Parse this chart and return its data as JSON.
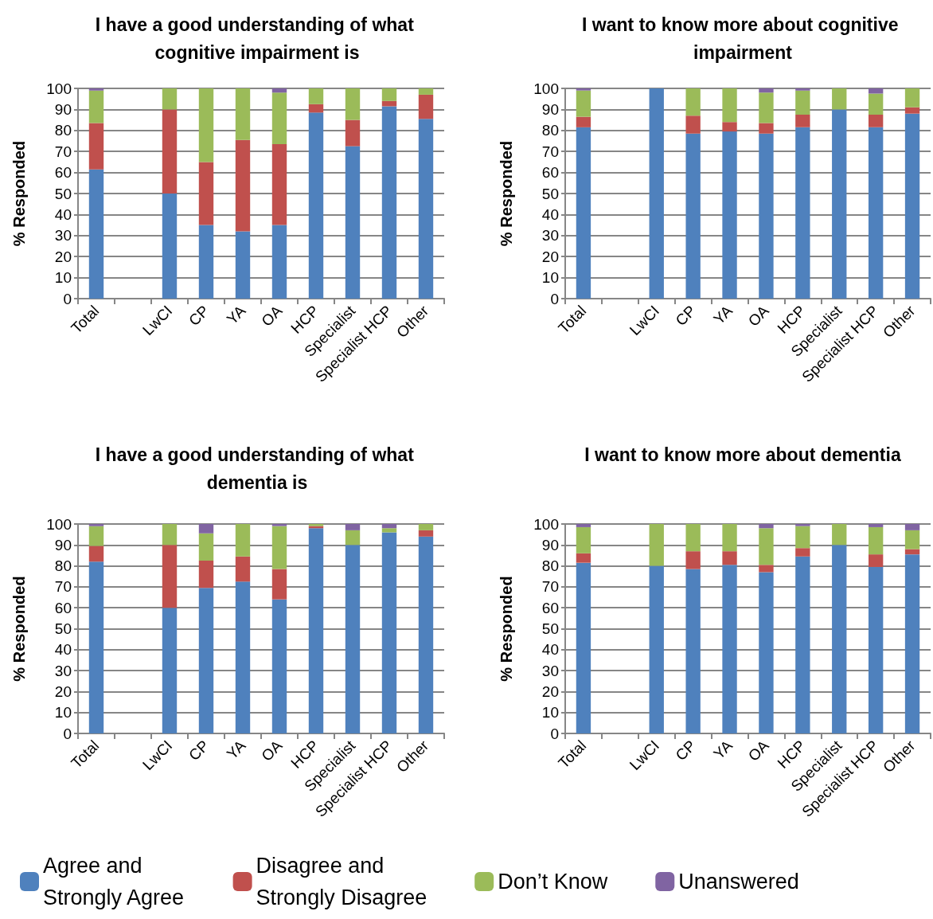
{
  "chart_data": [
    {
      "type": "bar",
      "stacked": true,
      "title": "I have a good understanding of what cognitive impairment is",
      "ylabel": "% Responded",
      "categories": [
        "Total",
        null,
        "LwCI",
        "CP",
        "YA",
        "OA",
        "HCP",
        "Specialist",
        "Specialist HCP",
        "Other"
      ],
      "ylim": [
        0,
        100
      ],
      "yticks": [
        0,
        10,
        20,
        30,
        40,
        50,
        60,
        70,
        80,
        90,
        100
      ],
      "grid": "y",
      "series": [
        {
          "color": "#4f81bd",
          "values": [
            61.5,
            null,
            50,
            35,
            32,
            35,
            88.5,
            72.5,
            91.5,
            85.5
          ]
        },
        {
          "color": "#c0504d",
          "values": [
            22,
            null,
            40,
            30,
            43.5,
            38.5,
            4,
            12.5,
            2.5,
            11.5
          ]
        },
        {
          "color": "#9bbb59",
          "values": [
            15.5,
            null,
            10,
            35,
            24.5,
            24.5,
            7.5,
            15,
            6,
            3
          ]
        },
        {
          "color": "#8064a2",
          "values": [
            1,
            null,
            0,
            0,
            0,
            2,
            0,
            0,
            0,
            0
          ]
        }
      ]
    },
    {
      "type": "bar",
      "stacked": true,
      "title": "I want to know more about cognitive impairment",
      "ylabel": "% Responded",
      "categories": [
        "Total",
        null,
        "LwCI",
        "CP",
        "YA",
        "OA",
        "HCP",
        "Specialist",
        "Specialist HCP",
        "Other"
      ],
      "ylim": [
        0,
        100
      ],
      "yticks": [
        0,
        10,
        20,
        30,
        40,
        50,
        60,
        70,
        80,
        90,
        100
      ],
      "grid": "y",
      "series": [
        {
          "color": "#4f81bd",
          "values": [
            81.5,
            null,
            100,
            78.5,
            79.5,
            78.5,
            81.5,
            90,
            81.5,
            88
          ]
        },
        {
          "color": "#c0504d",
          "values": [
            5,
            null,
            0,
            8.5,
            4.5,
            5,
            6,
            0,
            6,
            3
          ]
        },
        {
          "color": "#9bbb59",
          "values": [
            12.5,
            null,
            0,
            13,
            16,
            14.5,
            11.5,
            10,
            10,
            9
          ]
        },
        {
          "color": "#8064a2",
          "values": [
            1,
            null,
            0,
            0,
            0,
            2,
            1,
            0,
            2.5,
            0
          ]
        }
      ]
    },
    {
      "type": "bar",
      "stacked": true,
      "title": "I have a good understanding of what dementia is",
      "ylabel": "% Responded",
      "categories": [
        "Total",
        null,
        "LwCI",
        "CP",
        "YA",
        "OA",
        "HCP",
        "Specialist",
        "Specialist HCP",
        "Other"
      ],
      "ylim": [
        0,
        100
      ],
      "yticks": [
        0,
        10,
        20,
        30,
        40,
        50,
        60,
        70,
        80,
        90,
        100
      ],
      "grid": "y",
      "series": [
        {
          "color": "#4f81bd",
          "values": [
            82,
            null,
            60,
            69.5,
            72.5,
            64,
            98,
            90,
            96,
            94
          ]
        },
        {
          "color": "#c0504d",
          "values": [
            7.5,
            null,
            30,
            13,
            12,
            14.5,
            1,
            0,
            0,
            3
          ]
        },
        {
          "color": "#9bbb59",
          "values": [
            9.5,
            null,
            10,
            13,
            15.5,
            20.5,
            1,
            7,
            2,
            3
          ]
        },
        {
          "color": "#8064a2",
          "values": [
            1,
            null,
            0,
            4.5,
            0,
            1,
            0,
            3,
            2,
            0
          ]
        }
      ]
    },
    {
      "type": "bar",
      "stacked": true,
      "title": "I want to know more about dementia",
      "ylabel": "% Responded",
      "categories": [
        "Total",
        null,
        "LwCI",
        "CP",
        "YA",
        "OA",
        "HCP",
        "Specialist",
        "Specialist HCP",
        "Other"
      ],
      "ylim": [
        0,
        100
      ],
      "yticks": [
        0,
        10,
        20,
        30,
        40,
        50,
        60,
        70,
        80,
        90,
        100
      ],
      "grid": "y",
      "legend": "bottom",
      "series": [
        {
          "name": "Agree and Strongly Agree",
          "color": "#4f81bd",
          "values": [
            81.5,
            null,
            80,
            78.5,
            80.5,
            77,
            84.5,
            90,
            79.5,
            85.5
          ]
        },
        {
          "name": "Disagree and Strongly Disagree",
          "color": "#c0504d",
          "values": [
            4.5,
            null,
            0,
            8.5,
            6.5,
            3.5,
            4,
            0,
            6,
            2.5
          ]
        },
        {
          "name": "Don’t Know",
          "color": "#9bbb59",
          "values": [
            12.5,
            null,
            20,
            13,
            13,
            17.5,
            10.5,
            10,
            13,
            9
          ]
        },
        {
          "name": "Unanswered",
          "color": "#8064a2",
          "values": [
            1.5,
            null,
            0,
            0,
            0,
            2,
            1,
            0,
            1.5,
            3
          ]
        }
      ]
    }
  ]
}
